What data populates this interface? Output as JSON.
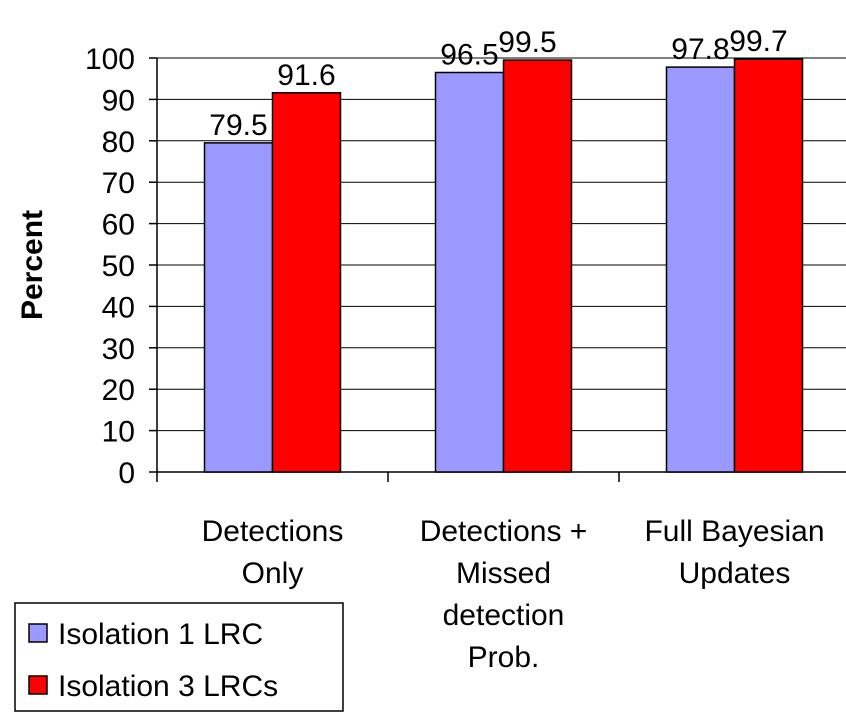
{
  "chart_data": {
    "type": "bar",
    "ylabel": "Percent",
    "xlabel": "",
    "ylim": [
      0,
      100
    ],
    "ytick_step": 10,
    "grid": true,
    "legend_position": "bottom-left",
    "categories": [
      "Detections Only",
      "Detections + Missed detection Prob.",
      "Full Bayesian Updates"
    ],
    "category_label_lines": [
      [
        "Detections",
        "Only"
      ],
      [
        "Detections +",
        "Missed",
        "detection",
        "Prob."
      ],
      [
        "Full Bayesian",
        "Updates"
      ]
    ],
    "series": [
      {
        "name": "Isolation 1 LRC",
        "color": "#9999ff",
        "values": [
          79.5,
          96.5,
          97.8
        ],
        "labels": [
          "79.5",
          "96.5",
          "97.8"
        ]
      },
      {
        "name": "Isolation 3 LRCs",
        "color": "#ff0000",
        "values": [
          91.6,
          99.5,
          99.7
        ],
        "labels": [
          "91.6",
          "99.5",
          "99.7"
        ]
      }
    ]
  }
}
